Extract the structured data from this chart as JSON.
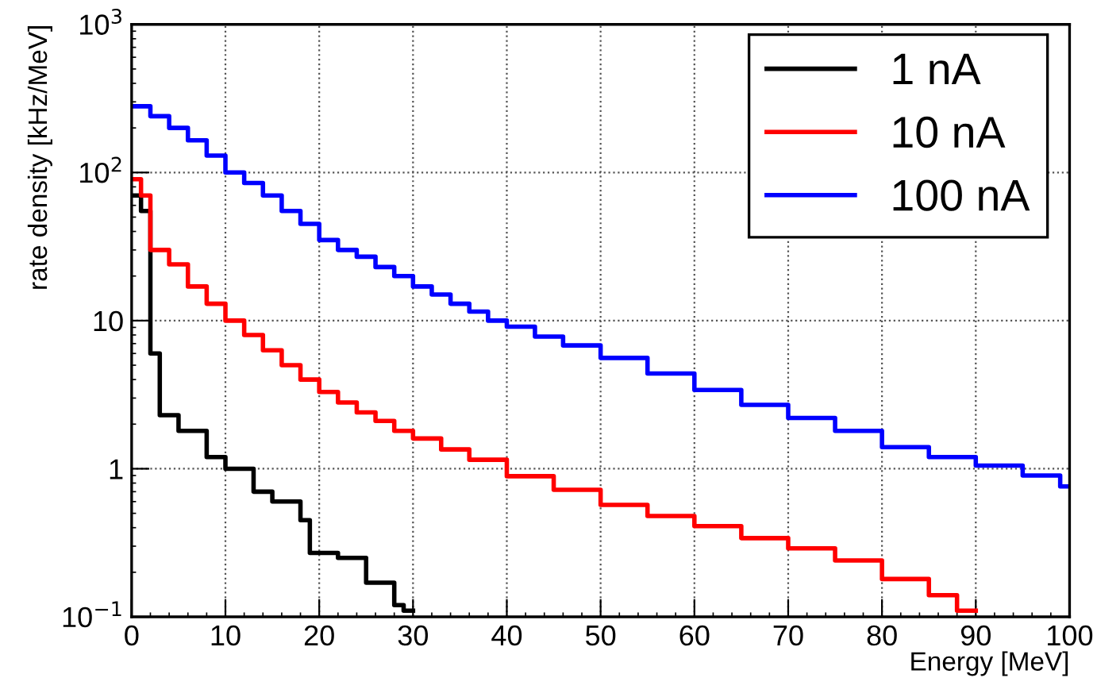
{
  "chart_data": {
    "type": "step",
    "xlabel": "Energy [MeV]",
    "ylabel": "rate density [kHz/MeV]",
    "log": "y",
    "xlim": [
      0,
      100
    ],
    "xticks": [
      0,
      10,
      20,
      30,
      40,
      50,
      60,
      70,
      80,
      90,
      100
    ],
    "ylim": [
      0.1,
      1000
    ],
    "yticks": [
      {
        "value": 0.1,
        "label": "10$^{−1}$"
      },
      {
        "value": 1,
        "label": "1"
      },
      {
        "value": 10,
        "label": "10"
      },
      {
        "value": 100,
        "label": "10$^{2}$"
      },
      {
        "value": 1000,
        "label": "10$^{3}$"
      }
    ],
    "grid": true,
    "legend": "top right",
    "series": [
      {
        "name": "1 nA",
        "color": "#000000",
        "x": [
          0,
          1,
          2,
          3,
          5,
          8,
          10,
          13,
          15,
          18,
          19,
          22,
          25,
          28,
          29,
          30
        ],
        "values": [
          70,
          55,
          6,
          2.3,
          1.8,
          1.2,
          1.0,
          0.7,
          0.6,
          0.45,
          0.27,
          0.25,
          0.17,
          0.12,
          0.11,
          0.11
        ]
      },
      {
        "name": "10 nA",
        "color": "#ff0000",
        "x": [
          0,
          1,
          2,
          4,
          6,
          8,
          10,
          12,
          14,
          16,
          18,
          20,
          22,
          24,
          26,
          28,
          30,
          33,
          36,
          40,
          45,
          50,
          55,
          60,
          65,
          70,
          75,
          80,
          85,
          88,
          90
        ],
        "values": [
          90,
          70,
          30,
          24,
          17,
          13,
          10,
          8,
          6.3,
          5,
          4,
          3.3,
          2.8,
          2.4,
          2.1,
          1.8,
          1.6,
          1.35,
          1.15,
          0.89,
          0.72,
          0.57,
          0.48,
          0.41,
          0.34,
          0.29,
          0.24,
          0.18,
          0.14,
          0.11,
          0.11
        ]
      },
      {
        "name": "100 nA",
        "color": "#0000ff",
        "x": [
          0,
          2,
          4,
          6,
          8,
          10,
          12,
          14,
          16,
          18,
          20,
          22,
          24,
          26,
          28,
          30,
          32,
          34,
          36,
          38,
          40,
          43,
          46,
          50,
          55,
          60,
          65,
          70,
          75,
          80,
          85,
          90,
          95,
          99,
          100
        ],
        "values": [
          280,
          240,
          200,
          165,
          130,
          100,
          85,
          70,
          55,
          45,
          35,
          30,
          27,
          23,
          20,
          17,
          15,
          13,
          11.5,
          10,
          9.1,
          7.8,
          6.8,
          5.6,
          4.4,
          3.4,
          2.7,
          2.2,
          1.8,
          1.4,
          1.2,
          1.05,
          0.9,
          0.76,
          0.76
        ]
      }
    ]
  }
}
